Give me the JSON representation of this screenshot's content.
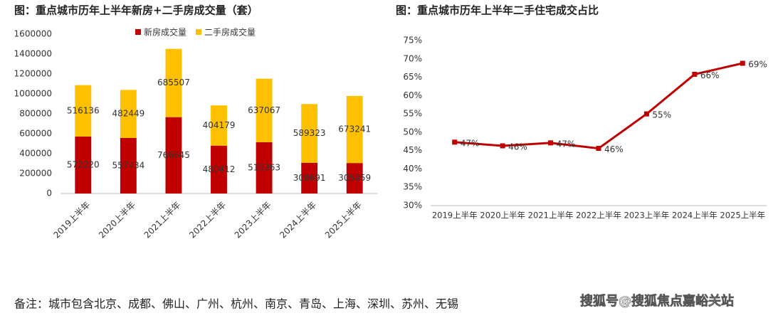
{
  "chart_data": [
    {
      "type": "bar",
      "stacked": true,
      "title": "图：重点城市历年上半年新房+二手房成交量（套）",
      "categories": [
        "2019上半年",
        "2020上半年",
        "2021上半年",
        "2022上半年",
        "2023上半年",
        "2024上半年",
        "2025上半年"
      ],
      "series": [
        {
          "name": "新房成交量",
          "color": "#c00000",
          "values": [
            572220,
            557434,
            766645,
            480412,
            515363,
            308691,
            305959
          ]
        },
        {
          "name": "二手房成交量",
          "color": "#ffc000",
          "values": [
            516136,
            482449,
            685507,
            404179,
            637067,
            589323,
            673241
          ]
        }
      ],
      "ylim": [
        0,
        1600000
      ],
      "yticks": [
        0,
        200000,
        400000,
        600000,
        800000,
        1000000,
        1200000,
        1400000,
        1600000
      ],
      "legend": "top"
    },
    {
      "type": "line",
      "title": "图：重点城市历年上半年二手住宅成交占比",
      "categories": [
        "2019上半年",
        "2020上半年",
        "2021上半年",
        "2022上半年",
        "2023上半年",
        "2024上半年",
        "2025上半年"
      ],
      "values": [
        47.3,
        46.3,
        47.1,
        45.6,
        55,
        65.8,
        68.8
      ],
      "value_labels": [
        "47%",
        "46%",
        "47%",
        "46%",
        "55%",
        "66%",
        "69%"
      ],
      "color": "#c00000",
      "ylim": [
        30,
        75
      ],
      "yticks": [
        {
          "value": 30,
          "label": "30%"
        },
        {
          "value": 35,
          "label": "35%"
        },
        {
          "value": 40,
          "label": "40%"
        },
        {
          "value": 45,
          "label": "45%"
        },
        {
          "value": 50,
          "label": "50%"
        },
        {
          "value": 55,
          "label": "55%"
        },
        {
          "value": 60,
          "label": "60%"
        },
        {
          "value": 65,
          "label": "65%"
        },
        {
          "value": 70,
          "label": "70%"
        },
        {
          "value": 75,
          "label": "75%"
        }
      ]
    }
  ],
  "footnote": "备注：城市包含北京、成都、佛山、广州、杭州、南京、青岛、上海、深圳、苏州、无锡",
  "watermark": "搜狐号@搜狐焦点嘉峪关站"
}
